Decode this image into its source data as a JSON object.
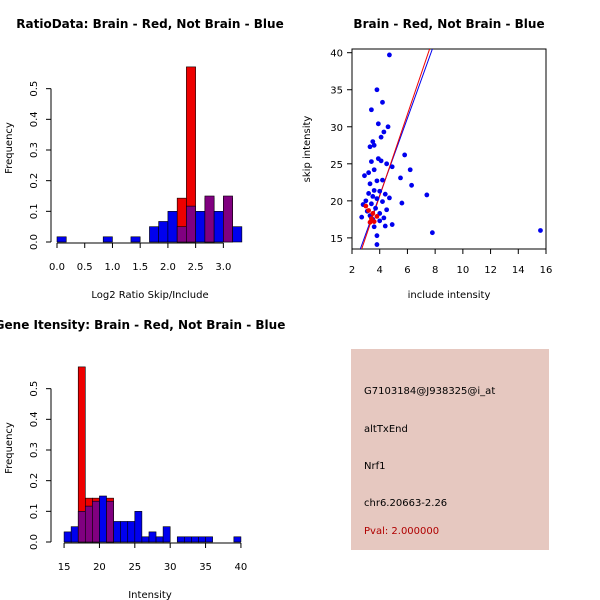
{
  "colors": {
    "red": "#ee0000",
    "blue": "#0000ee",
    "purple": "#800080",
    "panel": "#e6c8c0"
  },
  "chart_data": [
    {
      "type": "bar",
      "title": "RatioData: Brain - Red, Not Brain - Blue",
      "xlabel": "Log2 Ratio Skip/Include",
      "ylabel": "Frequency",
      "xlim": [
        0,
        3.3
      ],
      "ylim": [
        0,
        0.6
      ],
      "xticks": [
        "0.0",
        "0.5",
        "1.0",
        "1.5",
        "2.0",
        "2.5",
        "3.0"
      ],
      "yticks": [
        "0.0",
        "0.1",
        "0.2",
        "0.3",
        "0.4",
        "0.5"
      ],
      "bin_width": 0.1667,
      "series": [
        {
          "name": "Not Brain",
          "color": "blue",
          "bins": [
            {
              "start": 0.0,
              "value": 0.017
            },
            {
              "start": 0.833,
              "value": 0.017
            },
            {
              "start": 1.333,
              "value": 0.017
            },
            {
              "start": 1.667,
              "value": 0.05
            },
            {
              "start": 1.833,
              "value": 0.067
            },
            {
              "start": 2.0,
              "value": 0.1
            },
            {
              "start": 2.167,
              "value": 0.05
            },
            {
              "start": 2.333,
              "value": 0.117
            },
            {
              "start": 2.5,
              "value": 0.1
            },
            {
              "start": 2.667,
              "value": 0.15
            },
            {
              "start": 2.833,
              "value": 0.1
            },
            {
              "start": 3.0,
              "value": 0.15
            },
            {
              "start": 3.167,
              "value": 0.05
            }
          ]
        },
        {
          "name": "Brain",
          "color": "red",
          "bins": [
            {
              "start": 2.167,
              "value": 0.143
            },
            {
              "start": 2.333,
              "value": 0.571
            },
            {
              "start": 2.667,
              "value": 0.143
            },
            {
              "start": 3.0,
              "value": 0.143
            }
          ]
        }
      ]
    },
    {
      "type": "scatter",
      "title": "Brain - Red, Not Brain - Blue",
      "xlabel": "include intensity",
      "ylabel": "skip intensity",
      "xlim": [
        2,
        16
      ],
      "ylim": [
        13.5,
        40.5
      ],
      "xticks": [
        2,
        4,
        6,
        8,
        10,
        12,
        14,
        16
      ],
      "yticks": [
        15,
        20,
        25,
        30,
        35,
        40
      ],
      "series": [
        {
          "name": "Not Brain",
          "color": "blue",
          "points": [
            [
              4.7,
              39.7
            ],
            [
              3.8,
              35.0
            ],
            [
              4.2,
              33.3
            ],
            [
              3.4,
              32.3
            ],
            [
              4.6,
              30.0
            ],
            [
              3.9,
              30.4
            ],
            [
              4.3,
              29.3
            ],
            [
              4.1,
              28.6
            ],
            [
              3.5,
              28.0
            ],
            [
              3.3,
              27.3
            ],
            [
              3.6,
              27.5
            ],
            [
              5.8,
              26.2
            ],
            [
              3.9,
              25.7
            ],
            [
              3.4,
              25.3
            ],
            [
              4.1,
              25.4
            ],
            [
              4.5,
              25.0
            ],
            [
              4.9,
              24.6
            ],
            [
              6.2,
              24.2
            ],
            [
              3.6,
              24.2
            ],
            [
              3.2,
              23.8
            ],
            [
              2.9,
              23.4
            ],
            [
              5.5,
              23.1
            ],
            [
              4.2,
              22.8
            ],
            [
              3.8,
              22.7
            ],
            [
              3.3,
              22.3
            ],
            [
              6.3,
              22.1
            ],
            [
              3.6,
              21.4
            ],
            [
              4.0,
              21.3
            ],
            [
              3.2,
              21.0
            ],
            [
              4.4,
              20.9
            ],
            [
              3.5,
              20.6
            ],
            [
              7.4,
              20.8
            ],
            [
              4.7,
              20.4
            ],
            [
              3.8,
              20.3
            ],
            [
              3.0,
              20.0
            ],
            [
              4.2,
              19.9
            ],
            [
              3.4,
              19.6
            ],
            [
              5.6,
              19.7
            ],
            [
              2.8,
              19.5
            ],
            [
              3.7,
              19.0
            ],
            [
              4.5,
              18.8
            ],
            [
              3.1,
              18.6
            ],
            [
              4.0,
              18.3
            ],
            [
              3.3,
              18.0
            ],
            [
              2.7,
              17.8
            ],
            [
              4.3,
              17.7
            ],
            [
              3.5,
              17.5
            ],
            [
              4.0,
              17.3
            ],
            [
              4.9,
              16.8
            ],
            [
              4.4,
              16.6
            ],
            [
              3.6,
              16.5
            ],
            [
              3.8,
              15.3
            ],
            [
              7.8,
              15.7
            ],
            [
              3.8,
              14.1
            ],
            [
              15.6,
              16.0
            ]
          ],
          "fit_line": [
            [
              2.6,
              13.5
            ],
            [
              7.8,
              40.5
            ]
          ]
        },
        {
          "name": "Brain",
          "color": "red",
          "points": [
            [
              3.2,
              18.7
            ],
            [
              3.5,
              18.3
            ],
            [
              3.4,
              17.6
            ],
            [
              3.6,
              17.2
            ],
            [
              3.3,
              17.1
            ],
            [
              3.8,
              17.9
            ],
            [
              3.0,
              19.3
            ]
          ],
          "fit_line": [
            [
              2.7,
              13.5
            ],
            [
              7.6,
              40.5
            ]
          ]
        }
      ]
    },
    {
      "type": "bar",
      "title": "Gene Itensity: Brain - Red, Not Brain - Blue",
      "xlabel": "Intensity",
      "ylabel": "Frequency",
      "xlim": [
        14,
        41
      ],
      "ylim": [
        0,
        0.6
      ],
      "xticks": [
        "15",
        "20",
        "25",
        "30",
        "35",
        "40"
      ],
      "yticks": [
        "0.0",
        "0.1",
        "0.2",
        "0.3",
        "0.4",
        "0.5"
      ],
      "bin_width": 1,
      "series": [
        {
          "name": "Not Brain",
          "color": "blue",
          "bins": [
            {
              "start": 15,
              "value": 0.033
            },
            {
              "start": 16,
              "value": 0.05
            },
            {
              "start": 17,
              "value": 0.1
            },
            {
              "start": 18,
              "value": 0.117
            },
            {
              "start": 19,
              "value": 0.133
            },
            {
              "start": 20,
              "value": 0.15
            },
            {
              "start": 21,
              "value": 0.133
            },
            {
              "start": 22,
              "value": 0.067
            },
            {
              "start": 23,
              "value": 0.067
            },
            {
              "start": 24,
              "value": 0.067
            },
            {
              "start": 25,
              "value": 0.1
            },
            {
              "start": 26,
              "value": 0.017
            },
            {
              "start": 27,
              "value": 0.033
            },
            {
              "start": 28,
              "value": 0.017
            },
            {
              "start": 29,
              "value": 0.05
            },
            {
              "start": 31,
              "value": 0.017
            },
            {
              "start": 32,
              "value": 0.017
            },
            {
              "start": 33,
              "value": 0.017
            },
            {
              "start": 34,
              "value": 0.017
            },
            {
              "start": 35,
              "value": 0.017
            },
            {
              "start": 39,
              "value": 0.017
            }
          ]
        },
        {
          "name": "Brain",
          "color": "red",
          "bins": [
            {
              "start": 17,
              "value": 0.571
            },
            {
              "start": 18,
              "value": 0.143
            },
            {
              "start": 19,
              "value": 0.143
            },
            {
              "start": 21,
              "value": 0.143
            }
          ]
        }
      ]
    }
  ],
  "info": {
    "probe_id": "G7103184@J938325@i_at",
    "event_type": "altTxEnd",
    "gene": "Nrf1",
    "location": "chr6.20663-2.26",
    "pval": "Pval: 2.000000"
  }
}
